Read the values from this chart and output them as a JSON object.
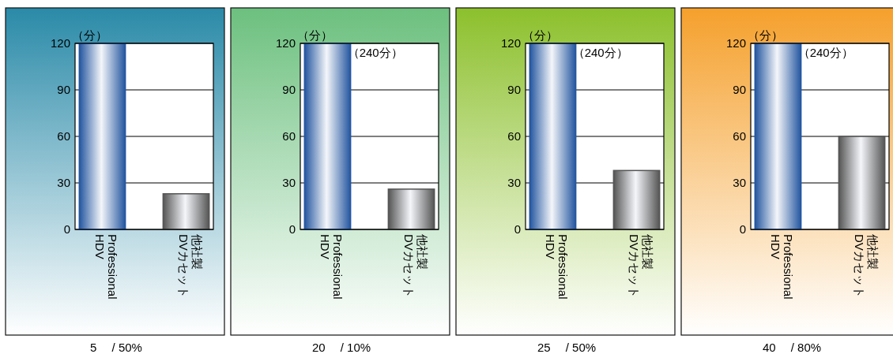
{
  "chart_data": [
    {
      "type": "bar",
      "xlabel": "5　 / 50%",
      "ylabel": "（分）",
      "categories": [
        "Professional HDV",
        "他社製DVカセット"
      ],
      "values": [
        120,
        23
      ],
      "colors": [
        "#2456a0",
        "#555555"
      ],
      "ylim": [
        0,
        120
      ],
      "yticks": [
        0,
        30,
        60,
        90,
        120
      ],
      "grid": "y"
    },
    {
      "type": "bar",
      "xlabel": "20　 / 10%",
      "ylabel": "（分）",
      "categories": [
        "Professional HDV",
        "他社製DVカセット"
      ],
      "values": [
        120,
        26
      ],
      "colors": [
        "#2456a0",
        "#555555"
      ],
      "ylim": [
        0,
        120
      ],
      "yticks": [
        0,
        30,
        60,
        90,
        120
      ],
      "grid": "y",
      "annotations": [
        {
          "text": "（240分）",
          "x": "Professional HDV",
          "y": 120
        }
      ]
    },
    {
      "type": "bar",
      "xlabel": "25　 / 50%",
      "ylabel": "（分）",
      "categories": [
        "Professional HDV",
        "他社製DVカセット"
      ],
      "values": [
        120,
        38
      ],
      "colors": [
        "#2456a0",
        "#555555"
      ],
      "ylim": [
        0,
        120
      ],
      "yticks": [
        0,
        30,
        60,
        90,
        120
      ],
      "grid": "y",
      "annotations": [
        {
          "text": "（240分）",
          "x": "Professional HDV",
          "y": 120
        }
      ]
    },
    {
      "type": "bar",
      "xlabel": "40　 / 80%",
      "ylabel": "（分）",
      "categories": [
        "Professional HDV",
        "他社製DVカセット"
      ],
      "values": [
        120,
        60
      ],
      "colors": [
        "#2456a0",
        "#555555"
      ],
      "ylim": [
        0,
        120
      ],
      "yticks": [
        0,
        30,
        60,
        90,
        120
      ],
      "grid": "y",
      "annotations": [
        {
          "text": "（240分）",
          "x": "Professional HDV",
          "y": 120
        }
      ]
    }
  ]
}
